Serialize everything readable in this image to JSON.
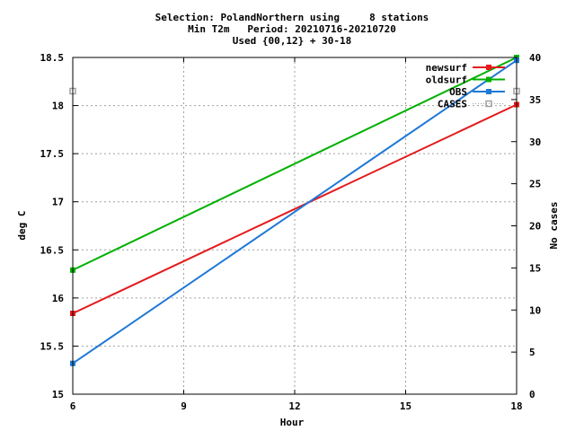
{
  "chart_data": {
    "type": "line",
    "title": [
      "Selection: PolandNorthern using     8 stations",
      "Min T2m   Period: 20210716-20210720",
      "Used {00,12} + 30-18"
    ],
    "xlabel": "Hour",
    "ylabel": "deg C",
    "y2label": "No cases",
    "xlim": [
      6,
      18
    ],
    "ylim": [
      15,
      18.5
    ],
    "y2lim": [
      0,
      40
    ],
    "xticks": [
      "6",
      "9",
      "12",
      "15",
      "18"
    ],
    "yticks": [
      "15",
      "15.5",
      "16",
      "16.5",
      "17",
      "17.5",
      "18",
      "18.5"
    ],
    "y2ticks": [
      "0",
      "5",
      "10",
      "15",
      "20",
      "25",
      "30",
      "35",
      "40"
    ],
    "grid": true,
    "legend_position": "top-right",
    "series": [
      {
        "name": "newsurf",
        "color": "#e41a1c",
        "marker": "filled-square",
        "axis": "y",
        "x": [
          6,
          18
        ],
        "y": [
          15.84,
          18.01
        ]
      },
      {
        "name": "oldsurf",
        "color": "#00b000",
        "marker": "filled-square",
        "axis": "y",
        "x": [
          6,
          18
        ],
        "y": [
          16.29,
          18.5
        ]
      },
      {
        "name": "OBS",
        "color": "#1f78d6",
        "marker": "filled-square",
        "axis": "y",
        "x": [
          6,
          18
        ],
        "y": [
          15.32,
          18.47
        ]
      },
      {
        "name": "CASES",
        "color": "#a0a0a0",
        "marker": "open-square",
        "axis": "y2",
        "x": [
          6,
          18
        ],
        "y": [
          36,
          36
        ]
      }
    ]
  }
}
